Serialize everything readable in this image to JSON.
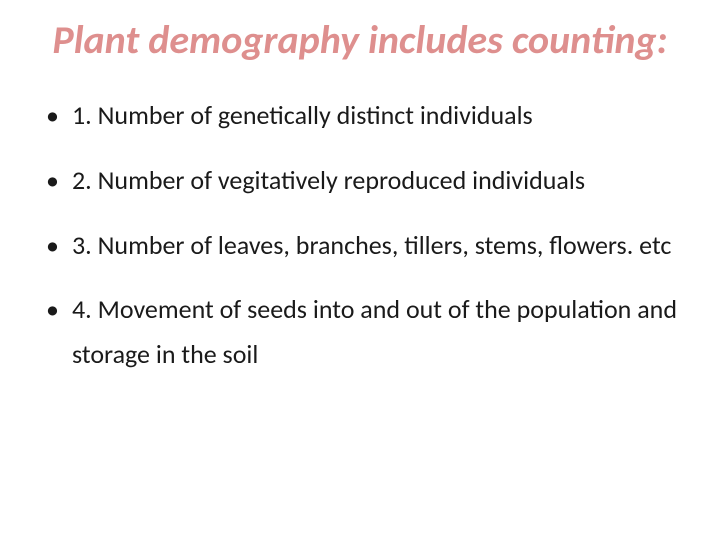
{
  "slide": {
    "title": "Plant demography includes counting:",
    "title_color": "#de8f8e",
    "title_fontsize": 40,
    "title_style": "italic",
    "title_weight": "bold",
    "background_color": "#ffffff",
    "body_color": "#1a1a1a",
    "body_fontsize": 26,
    "bullets": [
      "1. Number of genetically distinct individuals",
      "2. Number of vegitatively reproduced individuals",
      "3. Number of leaves, branches, tillers, stems, flowers. etc",
      "4. Movement of seeds into and out of the population and storage in the soil"
    ]
  }
}
